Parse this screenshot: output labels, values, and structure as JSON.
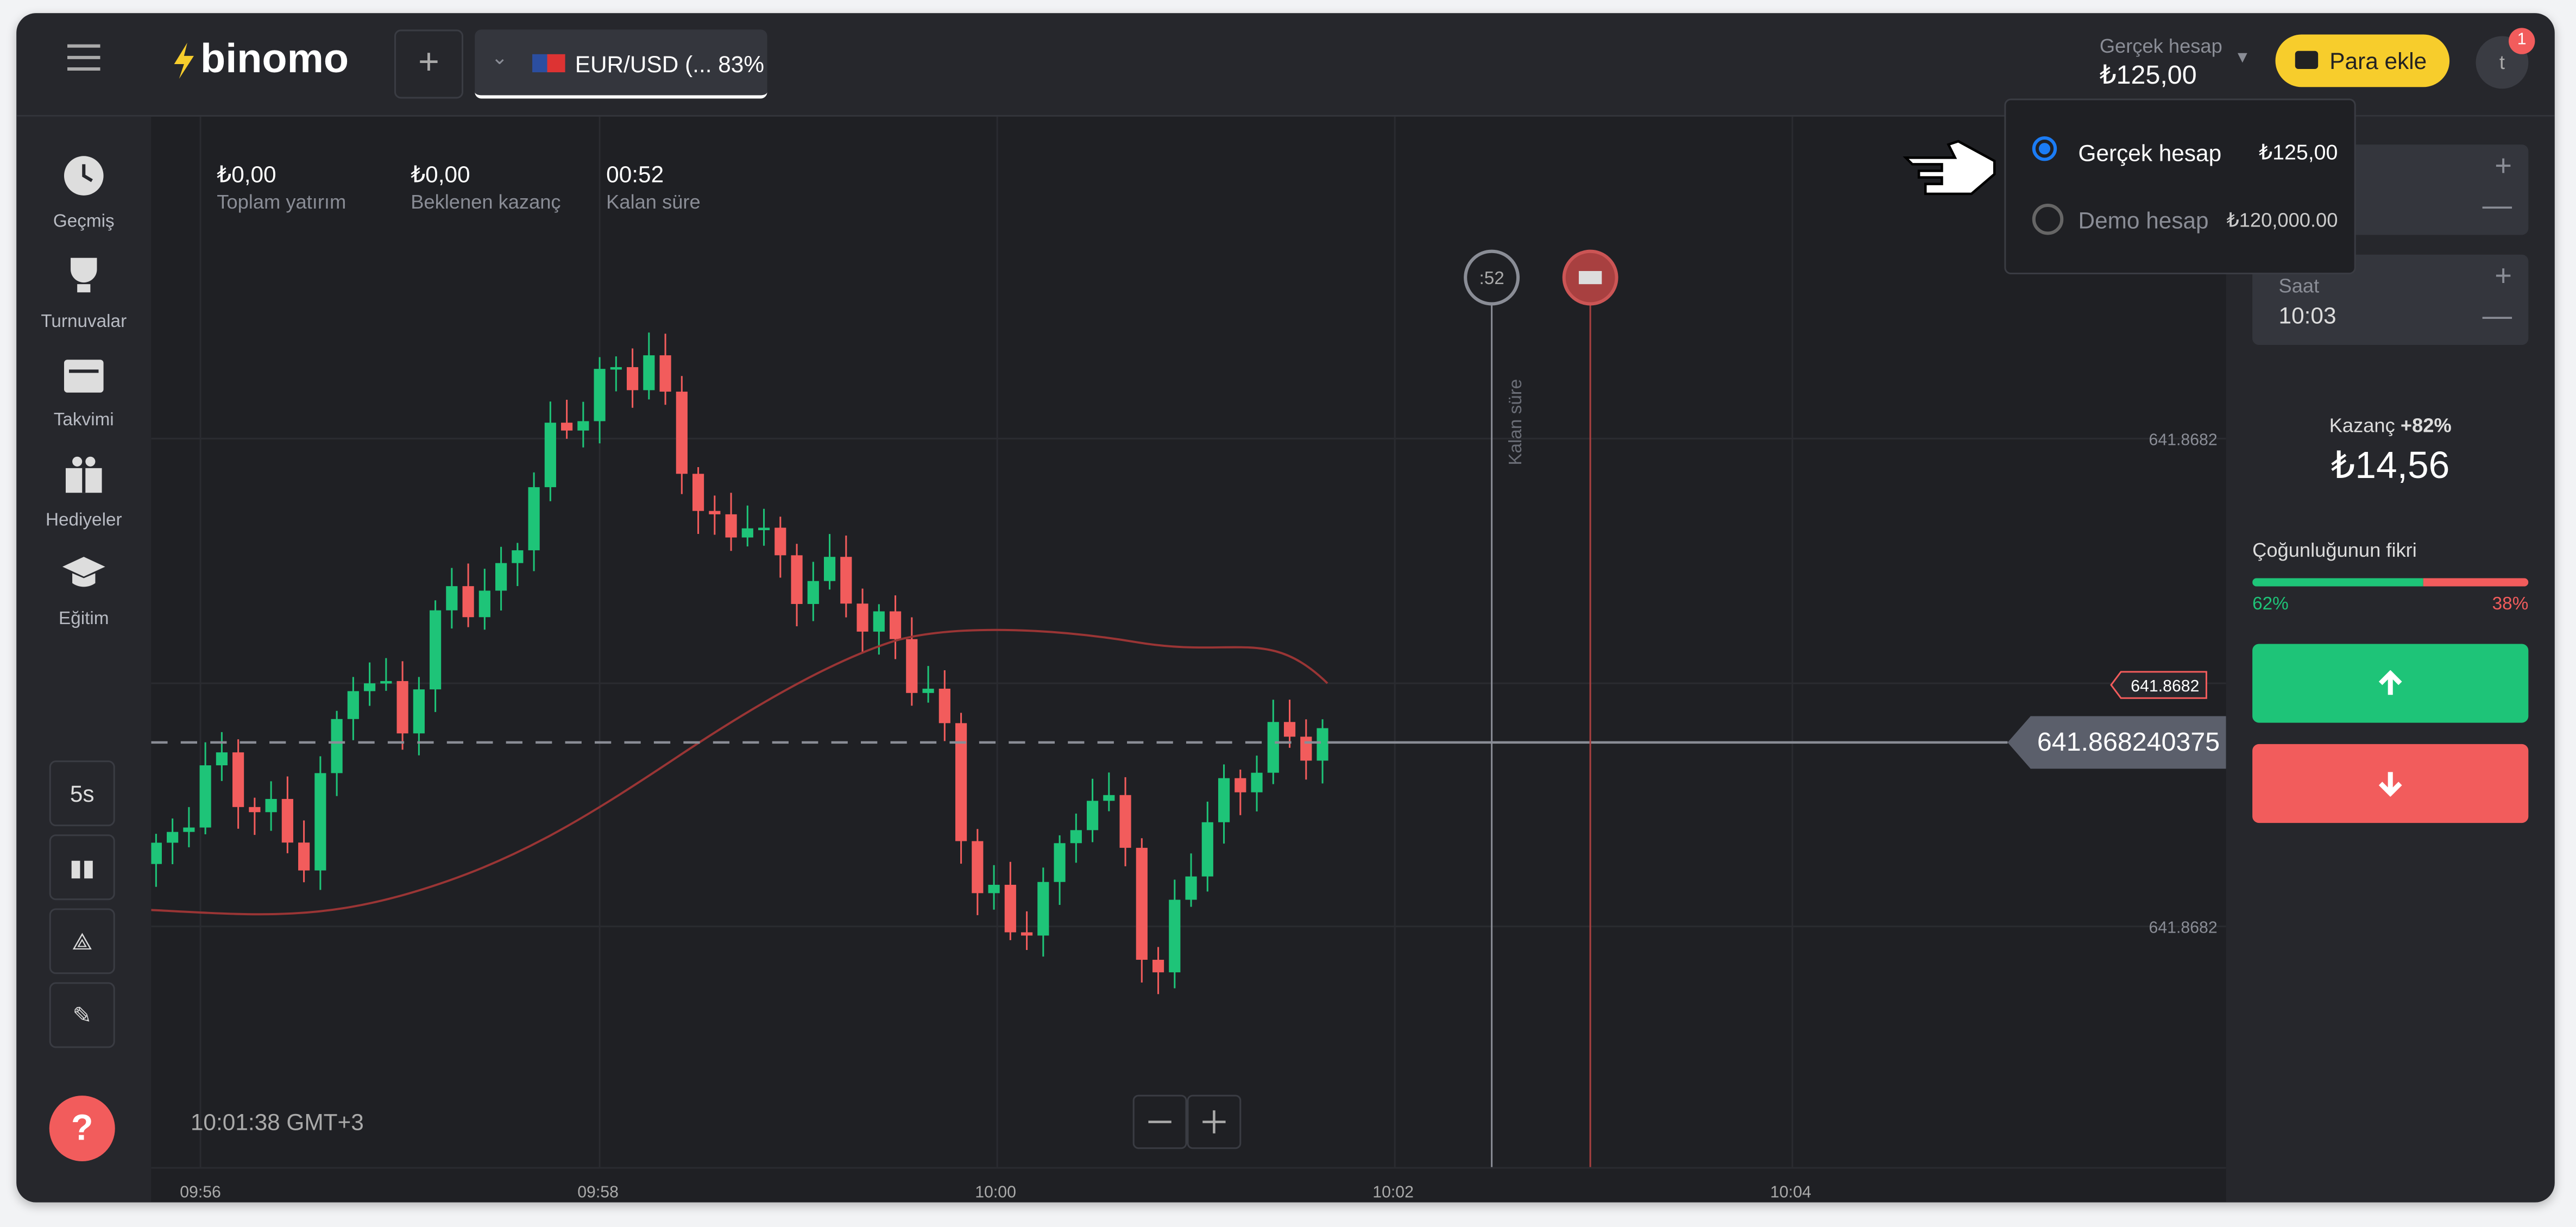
{
  "header": {
    "logo": "binomo",
    "asset": "EUR/USD (... 83%",
    "account_type": "Gerçek hesap",
    "balance": "₺125,00",
    "deposit_button": "Para ekle",
    "notifications": "1",
    "avatar": "t"
  },
  "sidebar": [
    "Geçmiş",
    "Turnuvalar",
    "Takvimi",
    "Hediyeler",
    "Eğitim"
  ],
  "stats": [
    {
      "value": "₺0,00",
      "label": "Toplam yatırım"
    },
    {
      "value": "₺0,00",
      "label": "Beklenen kazanç"
    },
    {
      "value": "00:52",
      "label": "Kalan süre"
    }
  ],
  "account_menu": [
    {
      "name": "Gerçek hesap",
      "balance": "₺125,00"
    },
    {
      "name": "Demo hesap",
      "balance": "₺120,000.00"
    }
  ],
  "trade_panel": {
    "time_label": "Saat",
    "time": "10:03",
    "profit_label": "Kazanç",
    "profit_rate": "+82%",
    "profit": "₺14,56",
    "opinion_title": "Çoğunluğunun fikri",
    "opinion_up": {
      "value": 62,
      "label": "62%"
    },
    "opinion_down": {
      "value": 38,
      "label": "38%"
    }
  },
  "chart": {
    "timer": ":52",
    "timer_label": "Kalan süre",
    "price_levels": [
      "641.8682",
      "641.8682",
      "641.8682"
    ],
    "current_price": "641.868240375",
    "interval": "5s",
    "clock": "10:01:38 GMT+3",
    "x_ticks": [
      "09:56",
      "09:58",
      "10:00",
      "10:02",
      "10:04"
    ]
  }
}
